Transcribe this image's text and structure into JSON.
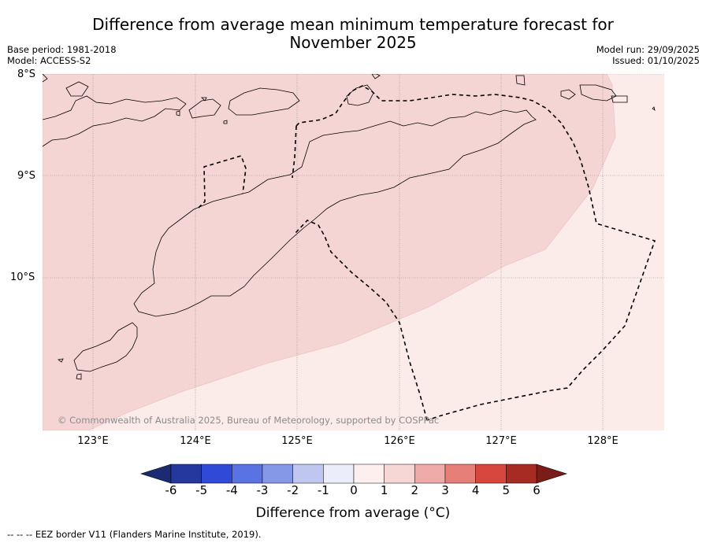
{
  "title_line1": "Difference from average mean minimum temperature forecast for",
  "title_line2": "November 2025",
  "meta": {
    "base_period": "Base period: 1981-2018",
    "model": "Model: ACCESS-S2",
    "model_run": "Model run: 29/09/2025",
    "issued": "Issued: 01/10/2025"
  },
  "map": {
    "lat_labels": [
      "8°S",
      "9°S",
      "10°S"
    ],
    "lon_labels": [
      "123°E",
      "124°E",
      "125°E",
      "126°E",
      "127°E",
      "128°E"
    ],
    "copyright": "© Commonwealth of Australia 2025, Bureau of Meteorology, supported by COSPPac",
    "regions": [
      {
        "name": "north-west",
        "category": "1 to 2",
        "color": "#f5d5d4"
      },
      {
        "name": "south-east",
        "category": "0 to 1",
        "color": "#fbebe9"
      }
    ]
  },
  "colorbar": {
    "ticks": [
      "-6",
      "-5",
      "-4",
      "-3",
      "-2",
      "-1",
      "0",
      "1",
      "2",
      "3",
      "4",
      "5",
      "6"
    ],
    "colors": [
      "#25389e",
      "#3049d6",
      "#5a73e3",
      "#8597e7",
      "#bfc7f1",
      "#ebedfa",
      "#fcefee",
      "#f6d7d5",
      "#efaba7",
      "#e67f78",
      "#d7473d",
      "#a82b23"
    ],
    "under_color": "#1b2a72",
    "over_color": "#7a1d18",
    "label": "Difference from average (°C)"
  },
  "footer": "--  --  -- EEZ border V11 (Flanders Marine Institute, 2019)."
}
